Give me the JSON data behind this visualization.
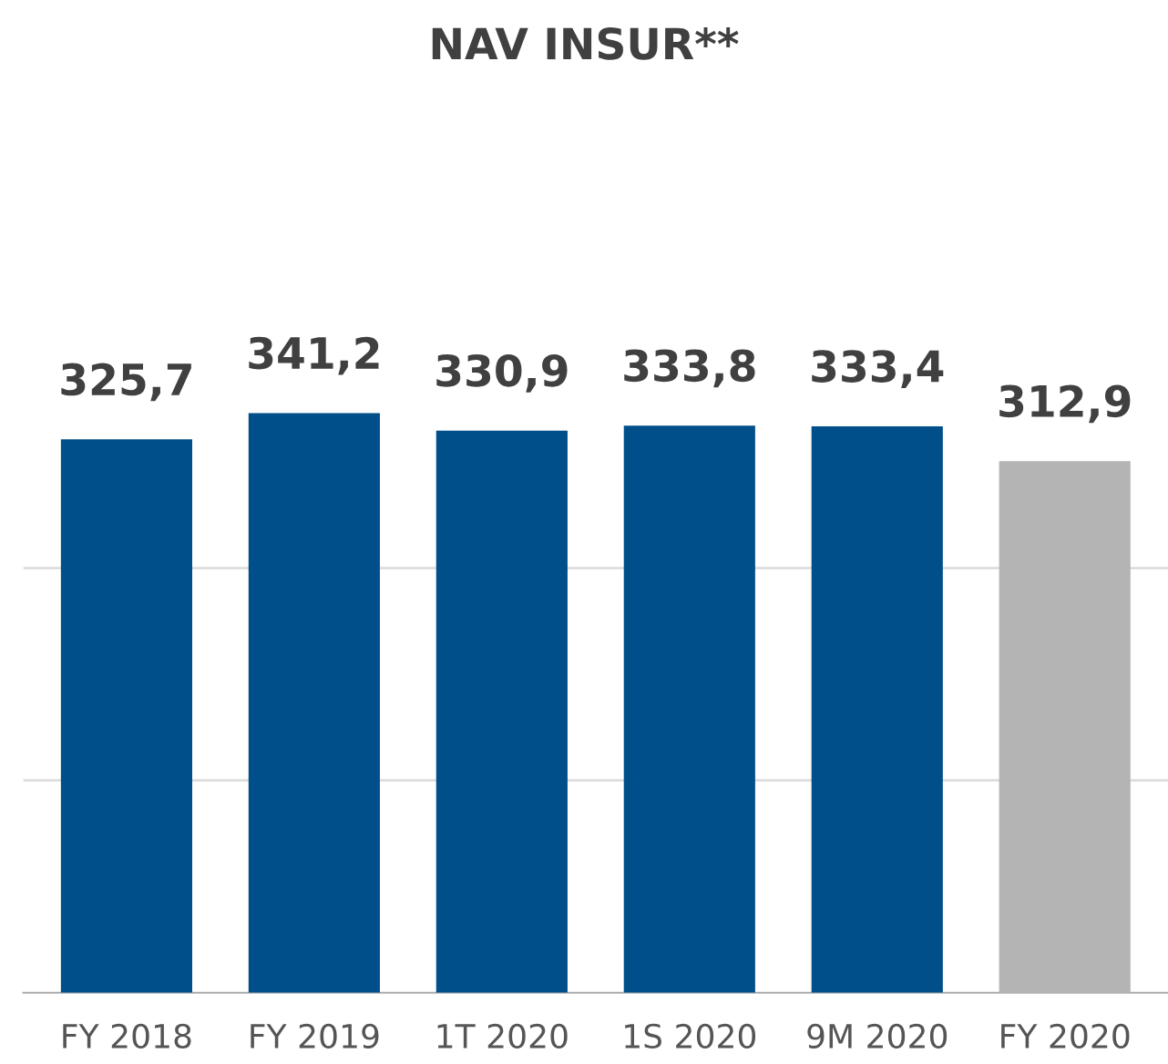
{
  "chart_data": {
    "type": "bar",
    "title": "NAV INSUR**",
    "categories": [
      "FY 2018",
      "FY 2019",
      "1T 2020",
      "1S 2020",
      "9M 2020",
      "FY 2020"
    ],
    "values": [
      325.7,
      341.2,
      330.9,
      333.8,
      333.4,
      312.9
    ],
    "value_labels": [
      "325,7",
      "341,2",
      "330,9",
      "333,8",
      "333,4",
      "312,9"
    ],
    "colors": [
      "#004f8a",
      "#004f8a",
      "#004f8a",
      "#004f8a",
      "#004f8a",
      "#b4b4b4"
    ],
    "ref_lines": [
      {
        "axis": "y",
        "value": 125,
        "color": "#dddddd"
      },
      {
        "axis": "y",
        "value": 250,
        "color": "#dddddd"
      }
    ],
    "tick_labels": "x",
    "legend": false
  }
}
